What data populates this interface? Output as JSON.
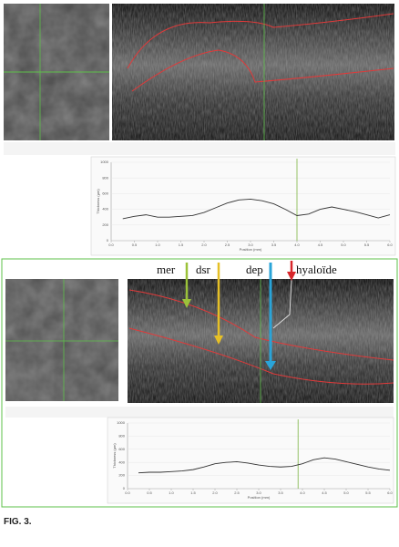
{
  "caption": "FIG. 3.",
  "labels": [
    "mer",
    "dsr",
    "dep",
    "hyaloïde"
  ],
  "chart_data": [
    {
      "type": "line",
      "ylabel": "Thickness (µm)",
      "xlabel": "Position (mm)",
      "x": [
        0.25,
        0.5,
        0.75,
        1,
        1.25,
        1.5,
        1.75,
        2,
        2.25,
        2.5,
        2.75,
        3,
        3.25,
        3.5,
        3.75,
        4,
        4.25,
        4.5,
        4.75,
        5,
        5.25,
        5.5,
        5.75,
        6
      ],
      "values": [
        280,
        310,
        330,
        300,
        300,
        310,
        320,
        360,
        420,
        480,
        520,
        530,
        510,
        470,
        400,
        320,
        340,
        400,
        430,
        400,
        370,
        330,
        290,
        330
      ],
      "color": "#333333",
      "cursor": 4,
      "cursor_color": "#7cb342",
      "xlim": [
        0,
        6
      ],
      "ylim": [
        0,
        1000
      ],
      "xticks": [
        {
          "value": 0,
          "label": "0.0"
        },
        0.5,
        {
          "value": 1,
          "label": "1.0"
        },
        1.5,
        {
          "value": 2,
          "label": "2.0"
        },
        2.5,
        {
          "value": 3,
          "label": "3.0"
        },
        3.5,
        {
          "value": 4,
          "label": "4.0"
        },
        4.5,
        {
          "value": 5,
          "label": "5.0"
        },
        5.5,
        {
          "value": 6,
          "label": "6.0"
        }
      ],
      "yticks": [
        0,
        200,
        400,
        600,
        800,
        1000
      ],
      "grid": true
    },
    {
      "type": "line",
      "ylabel": "Thickness (µm)",
      "xlabel": "Position (mm)",
      "x": [
        0.25,
        0.5,
        0.75,
        1,
        1.25,
        1.5,
        1.75,
        2,
        2.25,
        2.5,
        2.75,
        3,
        3.25,
        3.5,
        3.75,
        4,
        4.25,
        4.5,
        4.75,
        5,
        5.25,
        5.5,
        5.75,
        6
      ],
      "values": [
        240,
        250,
        250,
        260,
        270,
        290,
        330,
        380,
        400,
        410,
        390,
        360,
        340,
        330,
        340,
        380,
        440,
        470,
        450,
        410,
        370,
        330,
        300,
        280
      ],
      "color": "#333333",
      "cursor": 3.9,
      "cursor_color": "#7cb342",
      "xlim": [
        0,
        6
      ],
      "ylim": [
        0,
        1000
      ],
      "xticks": [
        {
          "value": 0,
          "label": "0.0"
        },
        0.5,
        {
          "value": 1,
          "label": "1.0"
        },
        1.5,
        {
          "value": 2,
          "label": "2.0"
        },
        2.5,
        {
          "value": 3,
          "label": "3.0"
        },
        3.5,
        {
          "value": 4,
          "label": "4.0"
        },
        4.5,
        {
          "value": 5,
          "label": "5.0"
        },
        5.5,
        {
          "value": 6,
          "label": "6.0"
        }
      ],
      "yticks": [
        0,
        200,
        400,
        600,
        800,
        1000
      ],
      "grid": true
    }
  ]
}
